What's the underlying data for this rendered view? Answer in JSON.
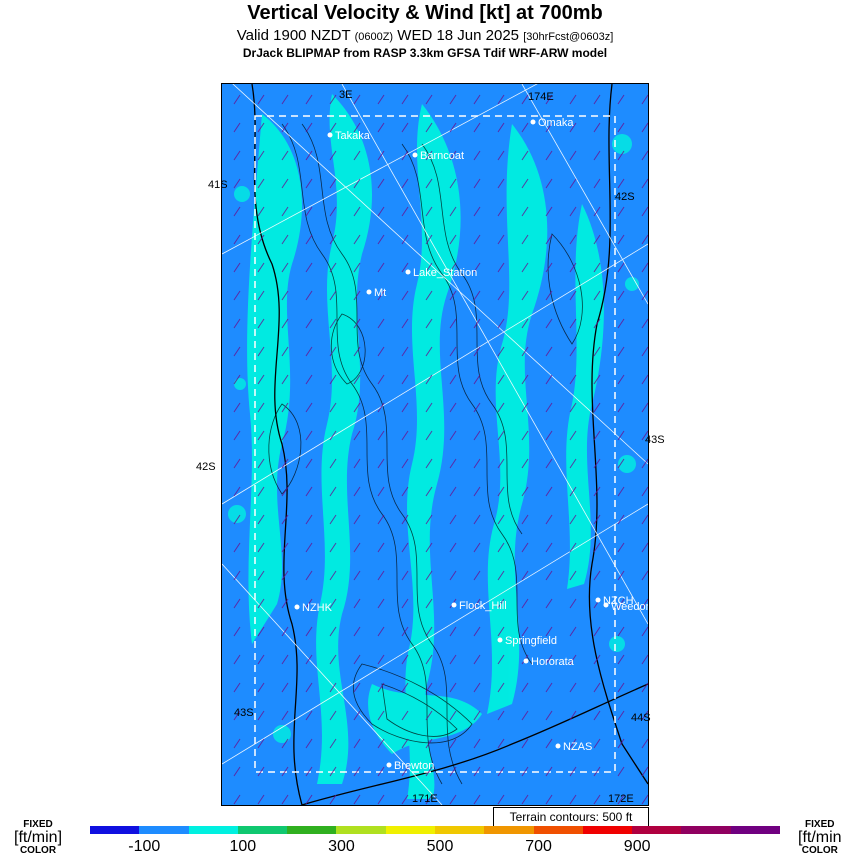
{
  "header": {
    "title": "Vertical Velocity & Wind [kt] at 700mb",
    "subtitle_main": "Valid 1900 NZDT",
    "subtitle_utc": "(0600Z)",
    "subtitle_date": "WED 18 Jun 2025",
    "subtitle_fcst": "[30hrFcst@0603z]",
    "model_line": "DrJack BLIPMAP from RASP 3.3km GFSA Tdif WRF-ARW model"
  },
  "map": {
    "lat_labels_left": [
      "41S",
      "42S",
      "43S"
    ],
    "lat_labels_right": [
      "42S",
      "43S",
      "44S"
    ],
    "lon_labels_top": [
      "3E",
      "174E"
    ],
    "lon_labels_bottom": [
      "171E",
      "172E"
    ],
    "places": [
      {
        "name": "Takaka"
      },
      {
        "name": "Barncoat"
      },
      {
        "name": "Omaka"
      },
      {
        "name": "Lake_Station"
      },
      {
        "name": "Mt"
      },
      {
        "name": "NZHK"
      },
      {
        "name": "Flock_Hill"
      },
      {
        "name": "NZCH"
      },
      {
        "name": "Weedons"
      },
      {
        "name": "Springfield"
      },
      {
        "name": "Hororata"
      },
      {
        "name": "NZAS"
      },
      {
        "name": "Brewton"
      }
    ],
    "terrain_note": "Terrain contours: 500 ft"
  },
  "colorbar": {
    "fixed_top": "FIXED",
    "fixed_units": "[ft/min]",
    "fixed_bottom": "COLOR",
    "fixed_units_right": "[ft/min",
    "colors": [
      "#1010e0",
      "#1e8cff",
      "#00f0e0",
      "#10c870",
      "#30b020",
      "#b0e020",
      "#f0f000",
      "#f0c800",
      "#f09600",
      "#f05000",
      "#f00000",
      "#b00040",
      "#900060",
      "#700080"
    ],
    "tick_labels": [
      "-100",
      "100",
      "300",
      "500",
      "700",
      "900"
    ]
  }
}
